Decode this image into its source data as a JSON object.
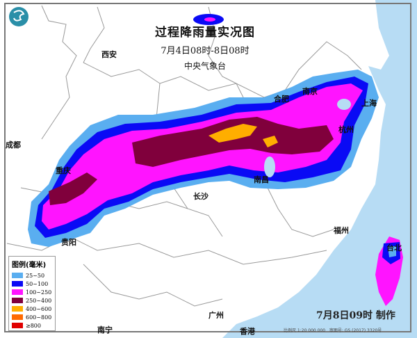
{
  "title": {
    "main": "过程降雨量实况图",
    "period": "7月4日08时-8日08时",
    "issuer": "中央气象台"
  },
  "cities": [
    "西安",
    "成都",
    "重庆",
    "贵阳",
    "长沙",
    "南昌",
    "合肥",
    "南京",
    "上海",
    "杭州",
    "福州",
    "台北",
    "广州",
    "香港",
    "南宁"
  ],
  "legend": {
    "title": "图例(毫米)",
    "items": [
      {
        "label": "25~50",
        "color": "#5aaef0"
      },
      {
        "label": "50~100",
        "color": "#0a0af5"
      },
      {
        "label": "100~250",
        "color": "#ff14ff"
      },
      {
        "label": "250~400",
        "color": "#80003c"
      },
      {
        "label": "400~600",
        "color": "#ffae00"
      },
      {
        "label": "600~800",
        "color": "#ff6a00"
      },
      {
        "label": "≥800",
        "color": "#e00000"
      }
    ]
  },
  "footer": {
    "made": "7月8日09时 制作",
    "scale": "比例尺  1:20 000 000",
    "approval": "审图号: GS (2017) 3320号"
  },
  "colors": {
    "sea": "#b7dcf4",
    "border": "#999999",
    "logo": "#2a8fa8"
  }
}
